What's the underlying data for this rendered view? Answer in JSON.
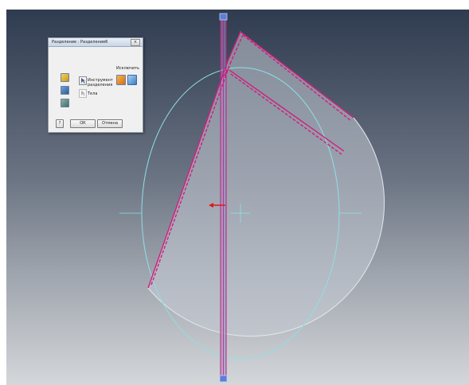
{
  "dialog": {
    "title": "Разделение : Разделение6",
    "close_glyph": "×",
    "tool_label_line1": "Инструмент",
    "tool_label_line2": "разделения",
    "bodies_label": "Тела",
    "remove_label": "Исключить",
    "ok_label": "ОК",
    "cancel_label": "Отмена",
    "help_glyph": "?"
  },
  "colors": {
    "sketch_line": "#d4157c",
    "construction_circle": "#8ee0e6",
    "body_fill": "#c5cbd3",
    "split_arrow": "#e01818",
    "tool_icon_face": "#e8c13a"
  }
}
